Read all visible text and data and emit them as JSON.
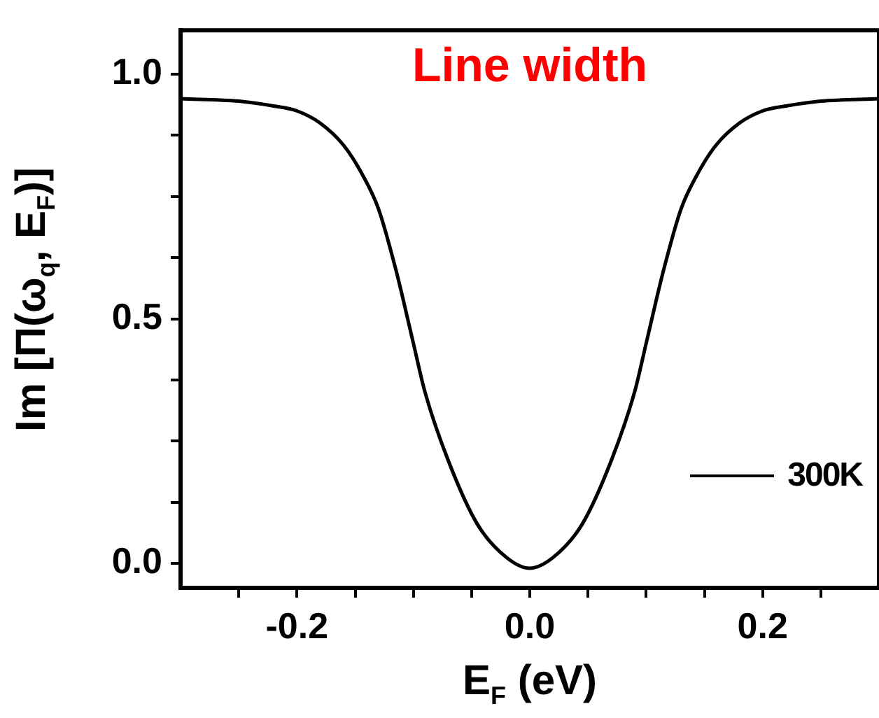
{
  "chart_data": {
    "type": "line",
    "xlabel": "E$_{F}$ (eV)",
    "ylabel": "Im [Π(ω$_{q}$, E$_{F}$)]",
    "annotations": [
      "Line width"
    ],
    "xlim": [
      -0.3,
      0.3
    ],
    "ylim": [
      -0.05,
      1.09
    ],
    "xticks": [
      {
        "value": -0.25,
        "label": null
      },
      {
        "value": -0.2,
        "label": "-0.2"
      },
      {
        "value": -0.15,
        "label": null
      },
      {
        "value": -0.1,
        "label": null
      },
      {
        "value": -0.05,
        "label": null
      },
      {
        "value": 0,
        "label": "0.0"
      },
      {
        "value": 0.05,
        "label": null
      },
      {
        "value": 0.1,
        "label": null
      },
      {
        "value": 0.15,
        "label": null
      },
      {
        "value": 0.2,
        "label": "0.2"
      },
      {
        "value": 0.25,
        "label": null
      }
    ],
    "yticks": [
      {
        "value": 0,
        "label": "0.0"
      },
      {
        "value": 0.125,
        "label": null
      },
      {
        "value": 0.25,
        "label": null
      },
      {
        "value": 0.375,
        "label": null
      },
      {
        "value": 0.5,
        "label": "0.5"
      },
      {
        "value": 0.625,
        "label": null
      },
      {
        "value": 0.75,
        "label": null
      },
      {
        "value": 0.875,
        "label": null
      },
      {
        "value": 1,
        "label": "1.0"
      }
    ],
    "grid": false,
    "legend": "bottom right",
    "marker": "none",
    "line_style": "solid",
    "series": [
      {
        "name": "300K",
        "color": "#000000",
        "x": [
          -0.3,
          -0.25,
          -0.22,
          -0.2,
          -0.18,
          -0.16,
          -0.145,
          -0.13,
          -0.115,
          -0.1,
          -0.09,
          -0.07,
          -0.045,
          -0.02,
          0,
          0.02,
          0.045,
          0.07,
          0.09,
          0.1,
          0.115,
          0.13,
          0.145,
          0.16,
          0.18,
          0.2,
          0.22,
          0.25,
          0.3
        ],
        "values": [
          0.95,
          0.945,
          0.935,
          0.925,
          0.9,
          0.855,
          0.8,
          0.725,
          0.6,
          0.45,
          0.35,
          0.21,
          0.08,
          0.012,
          -0.01,
          0.012,
          0.08,
          0.21,
          0.35,
          0.45,
          0.6,
          0.725,
          0.8,
          0.855,
          0.9,
          0.925,
          0.935,
          0.945,
          0.95
        ]
      }
    ]
  }
}
